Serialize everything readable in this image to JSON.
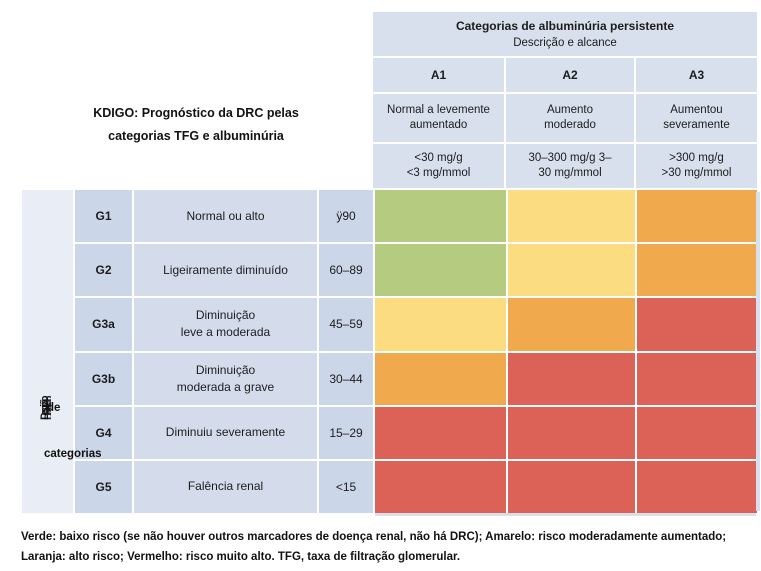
{
  "title": {
    "line1": "KDIGO: Prognóstico da DRC pelas",
    "line2": "categorias TFG e albuminúria"
  },
  "albuminuria_header": {
    "title": "Categorias de albuminúria persistente",
    "subtitle": "Descrição e alcance",
    "columns": [
      {
        "code": "A1",
        "desc": "Normal a levemente\naumentado",
        "range": "<30 mg/g\n<3 mg/mmol"
      },
      {
        "code": "A2",
        "desc": "Aumento\nmoderado",
        "range": "30–300 mg/g 3–\n30 mg/mmol"
      },
      {
        "code": "A3",
        "desc": "Aumentou\nseveramente",
        "range": ">300 mg/g\n>30 mg/mmol"
      }
    ]
  },
  "left_axis": {
    "vertical_label": "Descrição",
    "fragment_de": "de",
    "fragment_categorias": "categorias"
  },
  "gfr_rows": [
    {
      "code": "G1",
      "desc": "Normal ou alto",
      "range": "ÿ90",
      "risks": [
        "green",
        "yellow",
        "orange"
      ]
    },
    {
      "code": "G2",
      "desc": "Ligeiramente diminuído",
      "range": "60–89",
      "risks": [
        "green",
        "yellow",
        "orange"
      ]
    },
    {
      "code": "G3a",
      "desc": "Diminuição\nleve a moderada",
      "range": "45–59",
      "risks": [
        "yellow",
        "orange",
        "red"
      ]
    },
    {
      "code": "G3b",
      "desc": "Diminuição\nmoderada a grave",
      "range": "30–44",
      "risks": [
        "orange",
        "red",
        "red"
      ]
    },
    {
      "code": "G4",
      "desc": "Diminuiu severamente",
      "range": "15–29",
      "risks": [
        "red",
        "red",
        "red"
      ]
    },
    {
      "code": "G5",
      "desc": "Falência renal",
      "range": "<15",
      "risks": [
        "red",
        "red",
        "red"
      ]
    }
  ],
  "risk_colors": {
    "green": "#b5cb7f",
    "yellow": "#fcdc81",
    "orange": "#f1a94e",
    "red": "#dc6156"
  },
  "footnote": {
    "line1": "Verde: baixo risco (se não houver outros marcadores de doença renal, não há DRC); Amarelo: risco moderadamente aumentado;",
    "line2": "Laranja: alto risco; Vermelho: risco muito alto. TFG, taxa de filtração glomerular."
  },
  "chart_data": {
    "type": "heatmap",
    "title": "KDIGO: Prognóstico da DRC pelas categorias TFG e albuminúria",
    "column_group_title": "Categorias de albuminúria persistente — Descrição e alcance",
    "columns": [
      "A1",
      "A2",
      "A3"
    ],
    "column_labels": [
      "Normal a levemente aumentado (<30 mg/g, <3 mg/mmol)",
      "Aumento moderado (30–300 mg/g, 3–30 mg/mmol)",
      "Aumentou severamente (>300 mg/g, >30 mg/mmol)"
    ],
    "rows": [
      "G1",
      "G2",
      "G3a",
      "G3b",
      "G4",
      "G5"
    ],
    "row_labels": [
      "Normal ou alto (ÿ90)",
      "Ligeiramente diminuído (60–89)",
      "Diminuição leve a moderada (45–59)",
      "Diminuição moderada a grave (30–44)",
      "Diminuiu severamente (15–29)",
      "Falência renal (<15)"
    ],
    "values": [
      [
        "green",
        "yellow",
        "orange"
      ],
      [
        "green",
        "yellow",
        "orange"
      ],
      [
        "yellow",
        "orange",
        "red"
      ],
      [
        "orange",
        "red",
        "red"
      ],
      [
        "red",
        "red",
        "red"
      ],
      [
        "red",
        "red",
        "red"
      ]
    ],
    "legend": {
      "green": "baixo risco (se não houver outros marcadores de doença renal, não há DRC)",
      "yellow": "risco moderadamente aumentado",
      "orange": "alto risco",
      "red": "risco muito alto"
    }
  }
}
